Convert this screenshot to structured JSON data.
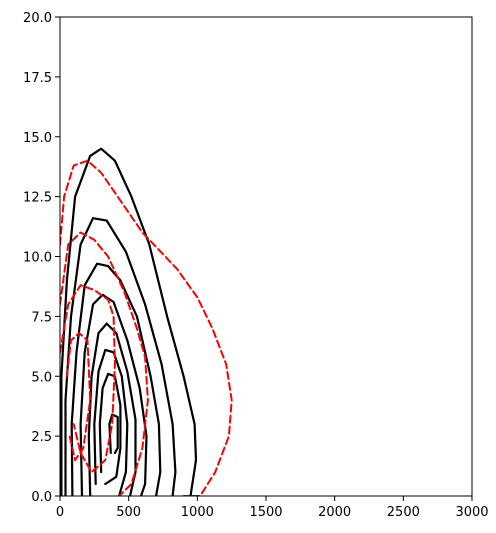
{
  "chart_data": {
    "type": "contour",
    "xlim": [
      0,
      3000
    ],
    "ylim": [
      0,
      20
    ],
    "xticks": [
      0,
      500,
      1000,
      1500,
      2000,
      2500,
      3000
    ],
    "xtick_labels": [
      "0",
      "500",
      "1000",
      "1500",
      "2000",
      "2500",
      "3000"
    ],
    "yticks": [
      0,
      2.5,
      5,
      7.5,
      10,
      12.5,
      15,
      17.5,
      20
    ],
    "ytick_labels": [
      "0.0",
      "2.5",
      "5.0",
      "7.5",
      "10.0",
      "12.5",
      "15.0",
      "17.5",
      "20.0"
    ],
    "grid": false,
    "legend": "none",
    "series": [
      {
        "color": "#000000",
        "style": "solid",
        "contours": [
          [
            [
              10,
              0
            ],
            [
              10,
              5
            ],
            [
              50,
              9
            ],
            [
              110,
              12.5
            ],
            [
              220,
              14.2
            ],
            [
              300,
              14.5
            ],
            [
              400,
              14
            ],
            [
              520,
              12.5
            ],
            [
              650,
              10.5
            ],
            [
              780,
              7.5
            ],
            [
              900,
              5
            ],
            [
              980,
              3
            ],
            [
              990,
              1.5
            ],
            [
              950,
              0
            ]
          ],
          [
            [
              40,
              0
            ],
            [
              40,
              4
            ],
            [
              80,
              7.5
            ],
            [
              150,
              10.5
            ],
            [
              240,
              11.6
            ],
            [
              340,
              11.5
            ],
            [
              480,
              10.2
            ],
            [
              620,
              8
            ],
            [
              740,
              5.5
            ],
            [
              820,
              3
            ],
            [
              840,
              1
            ],
            [
              820,
              0
            ]
          ],
          [
            [
              90,
              0
            ],
            [
              85,
              3
            ],
            [
              120,
              6
            ],
            [
              180,
              8.8
            ],
            [
              270,
              9.7
            ],
            [
              350,
              9.6
            ],
            [
              440,
              9
            ],
            [
              560,
              7.5
            ],
            [
              660,
              5
            ],
            [
              720,
              3
            ],
            [
              730,
              1
            ],
            [
              700,
              0
            ]
          ],
          [
            [
              160,
              0
            ],
            [
              150,
              3
            ],
            [
              180,
              6
            ],
            [
              240,
              8
            ],
            [
              310,
              8.4
            ],
            [
              390,
              8.1
            ],
            [
              490,
              6.5
            ],
            [
              580,
              4.5
            ],
            [
              630,
              2.5
            ],
            [
              620,
              0.5
            ],
            [
              590,
              0
            ]
          ],
          [
            [
              220,
              0
            ],
            [
              210,
              2.5
            ],
            [
              230,
              5
            ],
            [
              280,
              6.8
            ],
            [
              340,
              7.2
            ],
            [
              410,
              6.8
            ],
            [
              490,
              5.2
            ],
            [
              550,
              3.2
            ],
            [
              550,
              1
            ],
            [
              510,
              0
            ]
          ],
          [
            [
              260,
              0.5
            ],
            [
              250,
              3
            ],
            [
              280,
              5.2
            ],
            [
              330,
              6.1
            ],
            [
              390,
              6
            ],
            [
              450,
              5
            ],
            [
              490,
              3
            ],
            [
              480,
              1
            ],
            [
              430,
              0
            ]
          ],
          [
            [
              300,
              1
            ],
            [
              290,
              3
            ],
            [
              310,
              4.5
            ],
            [
              350,
              5.1
            ],
            [
              400,
              5
            ],
            [
              440,
              3.8
            ],
            [
              440,
              2
            ],
            [
              410,
              0.8
            ],
            [
              330,
              0.5
            ]
          ],
          [
            [
              370,
              1.8
            ],
            [
              360,
              3
            ],
            [
              380,
              3.4
            ],
            [
              420,
              3.3
            ],
            [
              420,
              2
            ],
            [
              400,
              1.8
            ]
          ]
        ]
      },
      {
        "color": "#ff0000",
        "style": "dashed",
        "contours": [
          [
            [
              0,
              10.5
            ],
            [
              30,
              12.5
            ],
            [
              100,
              13.8
            ],
            [
              200,
              14
            ],
            [
              300,
              13.5
            ],
            [
              420,
              12.5
            ],
            [
              600,
              11
            ],
            [
              850,
              9.5
            ],
            [
              1000,
              8.3
            ],
            [
              1110,
              7
            ],
            [
              1210,
              5.5
            ],
            [
              1250,
              4
            ],
            [
              1230,
              2.5
            ],
            [
              1130,
              1
            ],
            [
              1020,
              0
            ],
            [
              900,
              0
            ]
          ],
          [
            [
              0,
              8
            ],
            [
              60,
              10.5
            ],
            [
              150,
              11
            ],
            [
              250,
              10.7
            ],
            [
              350,
              10
            ],
            [
              470,
              8.5
            ],
            [
              560,
              7
            ],
            [
              620,
              5.8
            ],
            [
              640,
              4
            ],
            [
              600,
              2
            ],
            [
              520,
              0.5
            ],
            [
              430,
              0
            ]
          ],
          [
            [
              0,
              6
            ],
            [
              60,
              8
            ],
            [
              150,
              8.8
            ],
            [
              250,
              8.6
            ],
            [
              350,
              8.2
            ],
            [
              390,
              7.5
            ],
            [
              400,
              5.5
            ],
            [
              380,
              3
            ],
            [
              330,
              1.5
            ],
            [
              230,
              1
            ],
            [
              150,
              1.8
            ],
            [
              100,
              3
            ]
          ],
          [
            [
              50,
              5
            ],
            [
              80,
              6.5
            ],
            [
              140,
              6.8
            ],
            [
              200,
              6.5
            ],
            [
              220,
              4
            ],
            [
              170,
              2
            ],
            [
              110,
              1.5
            ],
            [
              70,
              2.5
            ]
          ]
        ]
      }
    ]
  }
}
